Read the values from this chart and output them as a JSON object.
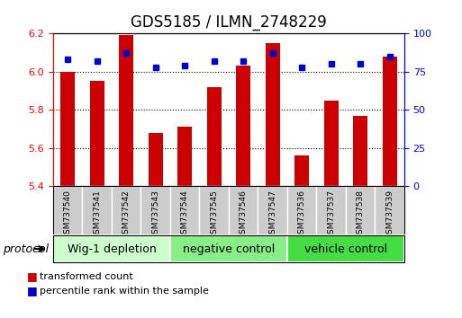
{
  "title": "GDS5185 / ILMN_2748229",
  "samples": [
    "GSM737540",
    "GSM737541",
    "GSM737542",
    "GSM737543",
    "GSM737544",
    "GSM737545",
    "GSM737546",
    "GSM737547",
    "GSM737536",
    "GSM737537",
    "GSM737538",
    "GSM737539"
  ],
  "bar_values": [
    6.0,
    5.95,
    6.19,
    5.68,
    5.71,
    5.92,
    6.03,
    6.15,
    5.56,
    5.85,
    5.77,
    6.08
  ],
  "percentile_values": [
    83,
    82,
    87,
    78,
    79,
    82,
    82,
    87,
    78,
    80,
    80,
    85
  ],
  "ylim_left": [
    5.4,
    6.2
  ],
  "ylim_right": [
    0,
    100
  ],
  "yticks_left": [
    5.4,
    5.6,
    5.8,
    6.0,
    6.2
  ],
  "yticks_right": [
    0,
    25,
    50,
    75,
    100
  ],
  "grid_yticks": [
    5.6,
    5.8,
    6.0
  ],
  "bar_color": "#cc0000",
  "dot_color": "#0000cc",
  "groups": [
    {
      "label": "Wig-1 depletion",
      "start": 0,
      "end": 4,
      "color": "#ccffcc"
    },
    {
      "label": "negative control",
      "start": 4,
      "end": 8,
      "color": "#88ee88"
    },
    {
      "label": "vehicle control",
      "start": 8,
      "end": 12,
      "color": "#44dd44"
    }
  ],
  "sample_box_color": "#cccccc",
  "protocol_label": "protocol",
  "legend_red_label": "transformed count",
  "legend_blue_label": "percentile rank within the sample",
  "title_fontsize": 12,
  "tick_fontsize": 8,
  "sample_fontsize": 6.5,
  "group_fontsize": 9,
  "legend_fontsize": 8
}
